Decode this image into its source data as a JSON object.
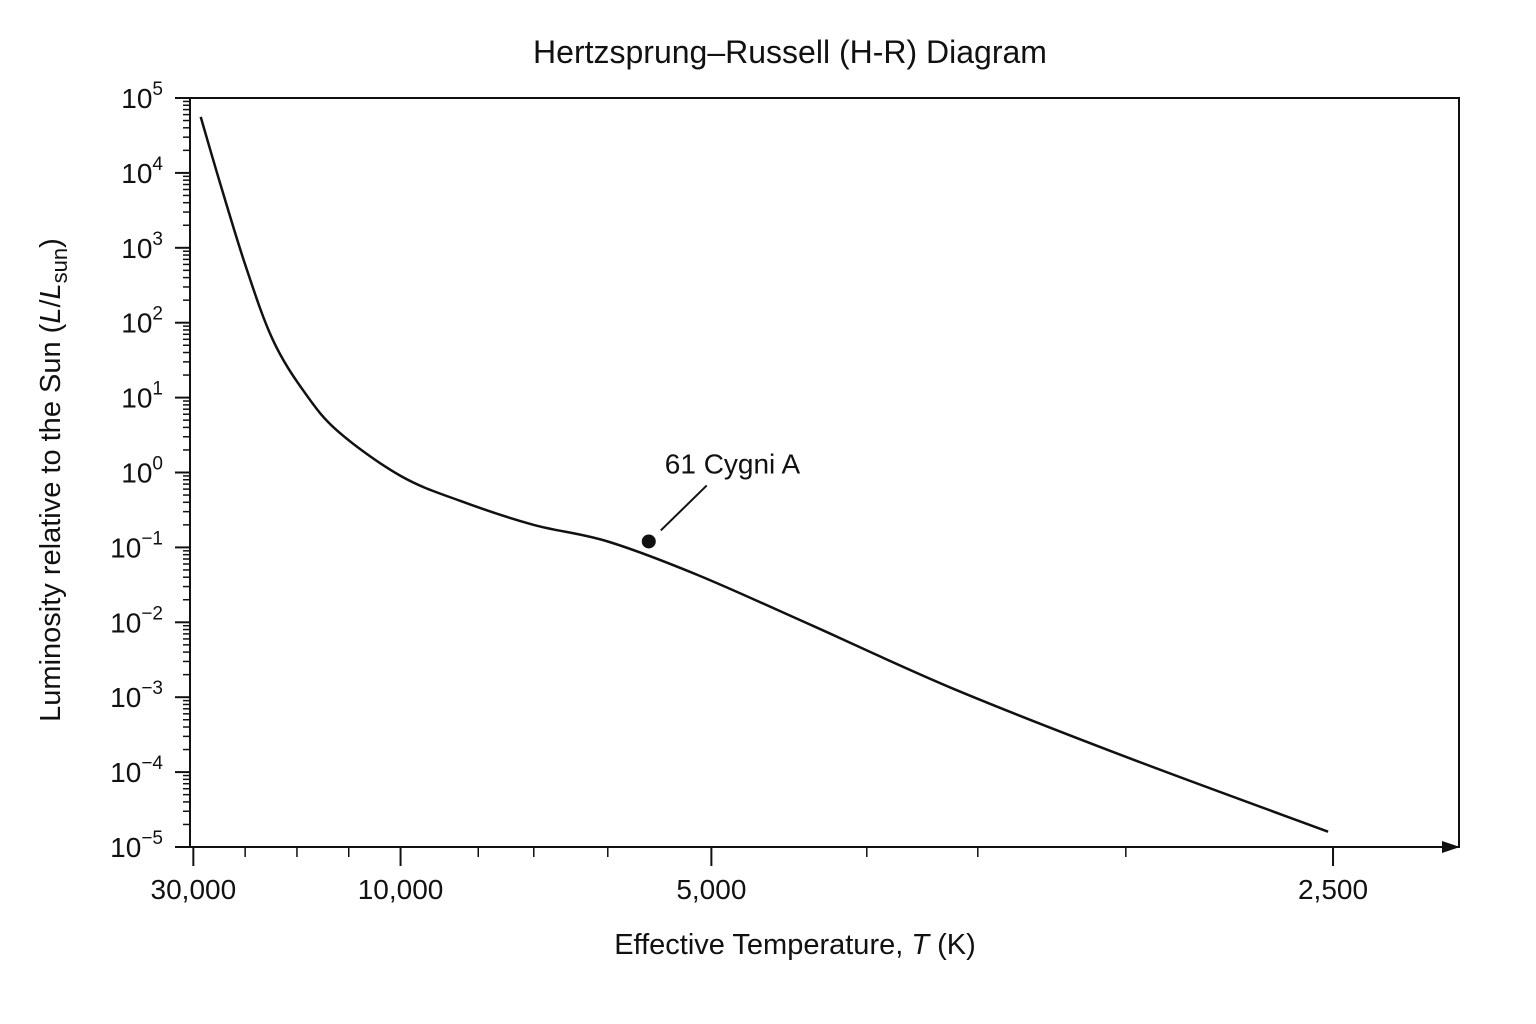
{
  "chart_data": {
    "type": "line",
    "title": "Hertzsprung–Russell (H-R) Diagram",
    "xlabel": {
      "prefix": "Effective Temperature, ",
      "italic": "T",
      "suffix": " (K)"
    },
    "ylabel": {
      "prefix": "Luminosity relative to the Sun (",
      "l1": "L",
      "slash": "/",
      "l2": "L",
      "sub": "sun",
      "suffix": ")"
    },
    "x_scale": "reciprocal",
    "x_direction": "decreasing to the right",
    "y_scale": "log",
    "xlim": [
      31000,
      2270
    ],
    "ylim": [
      1e-05,
      100000.0
    ],
    "x_ticks": [
      {
        "value": 30000,
        "label": "30,000"
      },
      {
        "value": 10000,
        "label": "10,000"
      },
      {
        "value": 5000,
        "label": "5,000"
      },
      {
        "value": 2500,
        "label": "2,500"
      }
    ],
    "x_minor_ticks": [
      20000,
      15000,
      12000,
      8000,
      7000,
      6000,
      4000,
      3500,
      3000
    ],
    "y_ticks": [
      {
        "value": 100000.0,
        "base": "10",
        "exp": "5"
      },
      {
        "value": 10000.0,
        "base": "10",
        "exp": "4"
      },
      {
        "value": 1000.0,
        "base": "10",
        "exp": "3"
      },
      {
        "value": 100.0,
        "base": "10",
        "exp": "2"
      },
      {
        "value": 10.0,
        "base": "10",
        "exp": "1"
      },
      {
        "value": 1.0,
        "base": "10",
        "exp": "0"
      },
      {
        "value": 0.1,
        "base": "10",
        "exp": "−1"
      },
      {
        "value": 0.01,
        "base": "10",
        "exp": "−2"
      },
      {
        "value": 0.001,
        "base": "10",
        "exp": "−3"
      },
      {
        "value": 0.0001,
        "base": "10",
        "exp": "−4"
      },
      {
        "value": 1e-05,
        "base": "10",
        "exp": "−5"
      }
    ],
    "series": [
      {
        "x": [
          28000,
          24000,
          20000,
          17000,
          14500,
          12500,
          10000,
          8400,
          7000,
          6000,
          5100,
          4300,
          3600,
          3000,
          2510
        ],
        "y": [
          56000,
          8000,
          600,
          60,
          12,
          3.5,
          0.9,
          0.42,
          0.2,
          0.12,
          0.042,
          0.009,
          0.0013,
          0.00016,
          1.6e-05
        ]
      }
    ],
    "points": [
      {
        "label": "61 Cygni A",
        "x": 5560,
        "y": 0.12
      }
    ],
    "grid": false,
    "legend": "none"
  }
}
